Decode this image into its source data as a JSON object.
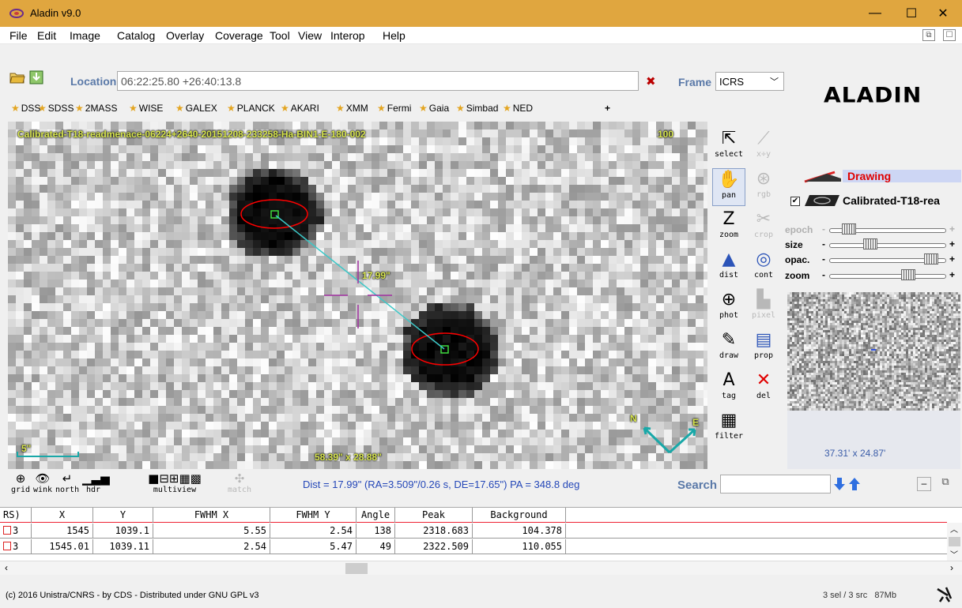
{
  "window": {
    "title": "Aladin v9.0",
    "minimize": "—",
    "maximize": "☐",
    "close": "✕"
  },
  "menu": [
    "File",
    "Edit",
    "Image",
    "Catalog",
    "Overlay",
    "Coverage",
    "Tool",
    "View",
    "Interop",
    "Help"
  ],
  "menu_right": {
    "restore": "⧉",
    "maximize": "☐"
  },
  "location": {
    "label": "Location",
    "value": "06:22:25.80 +26:40:13.8",
    "clear": "✖",
    "frame_label": "Frame",
    "frame_value": "ICRS"
  },
  "logo": "ALADIN",
  "surveys": [
    "DSS",
    "SDSS",
    "2MASS",
    "WISE",
    "GALEX",
    "PLANCK",
    "AKARI",
    "XMM",
    "Fermi",
    "Gaia",
    "Simbad",
    "NED"
  ],
  "surveys_add": "+",
  "viewer": {
    "image_name": "Calibrated-T18-readmenace-06224+2640-20151208-233258-Ha-BIN1-E-180-002",
    "zoom_badge": "100",
    "distance_label": "17.99\"",
    "scale_label": "5\"",
    "fov_label": "58.39\" x 28.88\"",
    "compass_n": "N",
    "compass_e": "E"
  },
  "tools": [
    {
      "id": "select",
      "label": "select",
      "glyph": "⇱",
      "disabled": false,
      "active": false
    },
    {
      "id": "xy",
      "label": "x÷y",
      "glyph": "⟋",
      "disabled": true,
      "active": false
    },
    {
      "id": "pan",
      "label": "pan",
      "glyph": "✋",
      "disabled": false,
      "active": true
    },
    {
      "id": "rgb",
      "label": "rgb",
      "glyph": "⊛",
      "disabled": true,
      "active": false
    },
    {
      "id": "zoom",
      "label": "zoom",
      "glyph": "Z",
      "disabled": false,
      "active": false
    },
    {
      "id": "crop",
      "label": "crop",
      "glyph": "✂",
      "disabled": true,
      "active": false
    },
    {
      "id": "dist",
      "label": "dist",
      "glyph": "▲",
      "disabled": false,
      "active": false
    },
    {
      "id": "cont",
      "label": "cont",
      "glyph": "◎",
      "disabled": false,
      "active": false
    },
    {
      "id": "phot",
      "label": "phot",
      "glyph": "⊕",
      "disabled": false,
      "active": false
    },
    {
      "id": "pixel",
      "label": "pixel",
      "glyph": "▙",
      "disabled": true,
      "active": false
    },
    {
      "id": "draw",
      "label": "draw",
      "glyph": "✎",
      "disabled": false,
      "active": false
    },
    {
      "id": "prop",
      "label": "prop",
      "glyph": "▤",
      "disabled": false,
      "active": false
    },
    {
      "id": "tag",
      "label": "tag",
      "glyph": "A",
      "disabled": false,
      "active": false
    },
    {
      "id": "del",
      "label": "del",
      "glyph": "✕",
      "disabled": false,
      "active": false
    },
    {
      "id": "filter",
      "label": "filter",
      "glyph": "▦",
      "disabled": false,
      "active": false
    }
  ],
  "layers": [
    {
      "name": "Drawing",
      "color": "#e00000"
    },
    {
      "name": "Calibrated-T18-rea",
      "color": "#000000"
    }
  ],
  "sliders": [
    {
      "label": "epoch",
      "value": 0.12,
      "disabled": true
    },
    {
      "label": "size",
      "value": 0.33,
      "disabled": false
    },
    {
      "label": "opac.",
      "value": 0.92,
      "disabled": false
    },
    {
      "label": "zoom",
      "value": 0.7,
      "disabled": false
    }
  ],
  "slider_minus": "-",
  "slider_plus": "+",
  "overview_size": "37.31' x 24.87'",
  "bottom_tools": [
    {
      "id": "grid",
      "label": "grid",
      "glyph": "⊕",
      "disabled": false
    },
    {
      "id": "wink",
      "label": "wink",
      "glyph": "👁",
      "disabled": false
    },
    {
      "id": "north",
      "label": "north",
      "glyph": "↵",
      "disabled": false
    },
    {
      "id": "hdr",
      "label": "hdr",
      "glyph": "▁▃▅",
      "disabled": false
    },
    {
      "id": "multiview",
      "label": "multiview",
      "glyph": "■⊟⊞▦▩",
      "disabled": false
    },
    {
      "id": "match",
      "label": "match",
      "glyph": "✣",
      "disabled": true
    }
  ],
  "measure_status": "Dist = 17.99\" (RA=3.509\"/0.26 s, DE=17.65\") PA = 348.8 deg",
  "search": {
    "label": "Search",
    "value": ""
  },
  "table": {
    "headers": [
      "RS)",
      "X",
      "Y",
      "FWHM X",
      "FWHM Y",
      "Angle",
      "Peak",
      "Background"
    ],
    "rows": [
      [
        "3",
        "1545",
        "1039.1",
        "5.55",
        "2.54",
        "138",
        "2318.683",
        "104.378"
      ],
      [
        "3",
        "1545.01",
        "1039.11",
        "2.54",
        "5.47",
        "49",
        "2322.509",
        "110.055"
      ]
    ]
  },
  "status": {
    "copyright": "(c) 2016 Unistra/CNRS - by CDS - Distributed under GNU GPL v3",
    "selection": "3 sel / 3 src",
    "memory": "87Mb"
  },
  "colors": {
    "titlebar": "#e0a63f",
    "accent_blue": "#5a79a8",
    "ellipse": "#ff0000",
    "distance_line": "#3cc8c8",
    "compass": "#19a8a8",
    "crosshair": "#a030a0",
    "label_yellow": "#d8e64e"
  }
}
